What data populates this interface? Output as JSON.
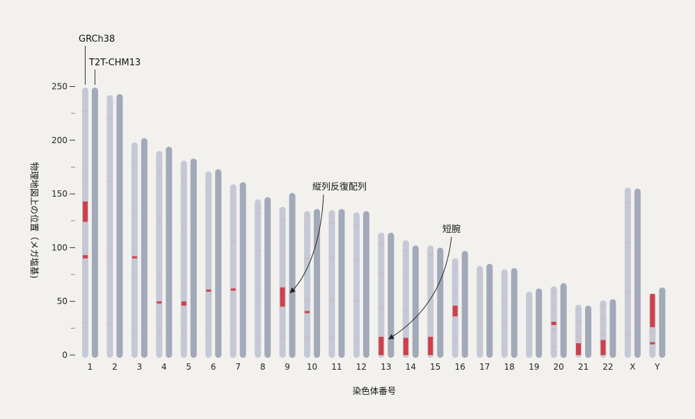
{
  "chart_data": {
    "type": "bar",
    "xlabel": "染色体番号",
    "ylabel": "物理地図上の位置（メガ塩基)",
    "ylim": [
      0,
      250
    ],
    "yticks": [
      0,
      50,
      100,
      150,
      200,
      250
    ],
    "categories": [
      "1",
      "2",
      "3",
      "4",
      "5",
      "6",
      "7",
      "8",
      "9",
      "10",
      "11",
      "12",
      "13",
      "14",
      "15",
      "16",
      "17",
      "18",
      "19",
      "20",
      "21",
      "22",
      "X",
      "Y"
    ],
    "series": [
      {
        "name": "GRCh38",
        "values": [
          249,
          242,
          198,
          190,
          181,
          171,
          159,
          145,
          138,
          134,
          135,
          133,
          114,
          107,
          102,
          90,
          83,
          80,
          59,
          64,
          47,
          51,
          156,
          57
        ],
        "color": "#c5c9d5"
      },
      {
        "name": "T2T-CHM13",
        "values": [
          249,
          243,
          202,
          194,
          183,
          173,
          161,
          147,
          151,
          136,
          136,
          134,
          114,
          102,
          100,
          97,
          85,
          81,
          62,
          67,
          46,
          52,
          155,
          63
        ],
        "color": "#a2a9b9"
      }
    ],
    "highlight_color": "#cf4049",
    "highlights": [
      {
        "category": "1",
        "start": 124,
        "end": 143
      },
      {
        "category": "1",
        "start": 90,
        "end": 93
      },
      {
        "category": "3",
        "start": 90,
        "end": 92
      },
      {
        "category": "4",
        "start": 48,
        "end": 50
      },
      {
        "category": "5",
        "start": 46,
        "end": 50
      },
      {
        "category": "6",
        "start": 59,
        "end": 61
      },
      {
        "category": "7",
        "start": 60,
        "end": 62
      },
      {
        "category": "9",
        "start": 45,
        "end": 63
      },
      {
        "category": "10",
        "start": 39,
        "end": 41
      },
      {
        "category": "13",
        "start": 0,
        "end": 17
      },
      {
        "category": "14",
        "start": 0,
        "end": 16
      },
      {
        "category": "15",
        "start": 0,
        "end": 17
      },
      {
        "category": "16",
        "start": 36,
        "end": 46
      },
      {
        "category": "20",
        "start": 28,
        "end": 31
      },
      {
        "category": "21",
        "start": 0,
        "end": 11
      },
      {
        "category": "22",
        "start": 0,
        "end": 14
      },
      {
        "category": "Y",
        "start": 26,
        "end": 57
      },
      {
        "category": "Y",
        "start": 10,
        "end": 12
      }
    ],
    "legend": [
      {
        "label": "GRCh38",
        "series": "GRCh38"
      },
      {
        "label": "T2T-CHM13",
        "series": "T2T-CHM13"
      }
    ],
    "annotations": [
      {
        "label": "縦列反復配列",
        "target_category": "9",
        "target_y": 58
      },
      {
        "label": "短腕",
        "target_category": "13",
        "target_y": 15
      }
    ],
    "grid": false
  }
}
